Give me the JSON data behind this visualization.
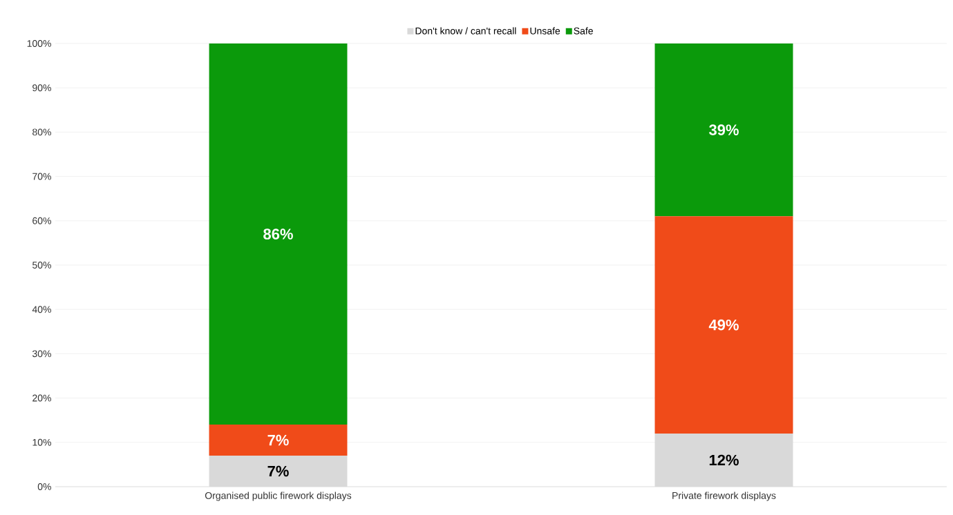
{
  "chart_data": {
    "type": "bar",
    "stacked": true,
    "categories": [
      "Organised public firework displays",
      "Private firework displays"
    ],
    "series": [
      {
        "name": "Don't know / can't recall",
        "color": "#d9d9d9",
        "values": [
          7,
          12
        ],
        "value_labels": [
          "7%",
          "12%"
        ]
      },
      {
        "name": "Unsafe",
        "color": "#f04b19",
        "values": [
          7,
          49
        ],
        "value_labels": [
          "7%",
          "49%"
        ]
      },
      {
        "name": "Safe",
        "color": "#0b9a0b",
        "values": [
          86,
          39
        ],
        "value_labels": [
          "86%",
          "39%"
        ]
      }
    ],
    "ylim": [
      0,
      100
    ],
    "yticks": [
      {
        "value": 0,
        "label": "0%"
      },
      {
        "value": 10,
        "label": "10%"
      },
      {
        "value": 20,
        "label": "20%"
      },
      {
        "value": 30,
        "label": "30%"
      },
      {
        "value": 40,
        "label": "40%"
      },
      {
        "value": 50,
        "label": "50%"
      },
      {
        "value": 60,
        "label": "60%"
      },
      {
        "value": 70,
        "label": "70%"
      },
      {
        "value": 80,
        "label": "80%"
      },
      {
        "value": 90,
        "label": "90%"
      },
      {
        "value": 100,
        "label": "100%"
      }
    ],
    "grid": "y",
    "legend": "top"
  }
}
